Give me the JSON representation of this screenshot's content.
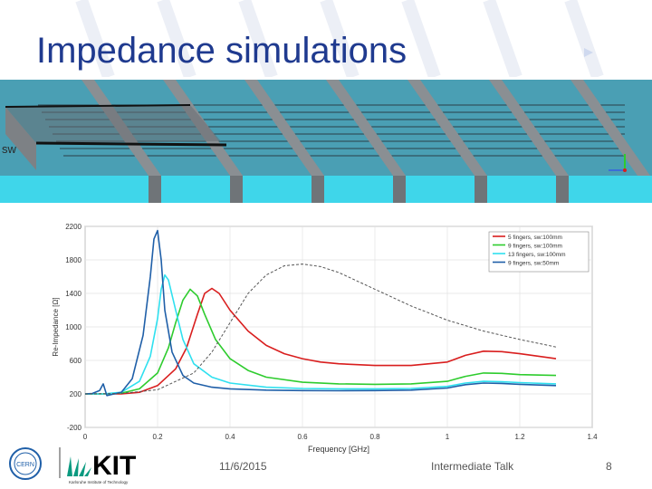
{
  "slide": {
    "title": "Impedance simulations",
    "sim_label": "sw",
    "footer": {
      "date": "11/6/2015",
      "talk": "Intermediate Talk",
      "page": "8"
    },
    "logos": {
      "cern": "CERN",
      "kit": "KIT",
      "kit_tagline": "Karlsruhe Institute of Technology"
    }
  },
  "colors": {
    "title": "#1f3a8f",
    "sim_cyan": "#3fd6ea",
    "series": [
      "#d91e1e",
      "#2ecc2e",
      "#2fe0ef",
      "#1f5fa8"
    ],
    "reference": "#555555"
  },
  "chart_data": {
    "type": "line",
    "title": "",
    "xlabel": "Frequency [GHz]",
    "ylabel": "Re-Impedance [Ω]",
    "xlim": [
      0,
      1.4
    ],
    "ylim": [
      -200,
      2200
    ],
    "xticks": [
      0,
      0.2,
      0.4,
      0.6,
      0.8,
      1,
      1.2,
      1.4
    ],
    "xtick_labels": [
      "0",
      "0.2",
      "0.4",
      "0.6",
      "0.8",
      "1",
      "1.2",
      "1.4"
    ],
    "yticks": [
      -200,
      200,
      600,
      1000,
      1400,
      1800,
      2200
    ],
    "ytick_labels": [
      "-200",
      "200",
      "600",
      "1000",
      "1400",
      "1800",
      "2200"
    ],
    "grid": true,
    "legend": "top-right",
    "series": [
      {
        "name": "5 fingers, sw:100mm",
        "color": "#d91e1e",
        "x": [
          0,
          0.05,
          0.1,
          0.15,
          0.2,
          0.25,
          0.28,
          0.31,
          0.33,
          0.35,
          0.37,
          0.4,
          0.45,
          0.5,
          0.55,
          0.6,
          0.65,
          0.7,
          0.8,
          0.9,
          1.0,
          1.05,
          1.1,
          1.15,
          1.2,
          1.3
        ],
        "y": [
          200,
          200,
          200,
          220,
          300,
          500,
          750,
          1150,
          1400,
          1460,
          1400,
          1200,
          950,
          780,
          680,
          620,
          580,
          560,
          540,
          540,
          580,
          660,
          710,
          705,
          680,
          620
        ]
      },
      {
        "name": "9 fingers, sw:100mm",
        "color": "#2ecc2e",
        "x": [
          0,
          0.05,
          0.1,
          0.15,
          0.2,
          0.23,
          0.25,
          0.27,
          0.29,
          0.31,
          0.33,
          0.36,
          0.4,
          0.45,
          0.5,
          0.6,
          0.7,
          0.8,
          0.9,
          1.0,
          1.05,
          1.1,
          1.15,
          1.2,
          1.3
        ],
        "y": [
          200,
          200,
          210,
          260,
          450,
          750,
          1050,
          1320,
          1450,
          1370,
          1150,
          850,
          620,
          480,
          400,
          340,
          320,
          315,
          320,
          350,
          410,
          450,
          445,
          430,
          420
        ]
      },
      {
        "name": "13 fingers, sw:100mm",
        "color": "#2fe0ef",
        "x": [
          0,
          0.05,
          0.1,
          0.15,
          0.18,
          0.2,
          0.21,
          0.22,
          0.23,
          0.25,
          0.27,
          0.3,
          0.35,
          0.4,
          0.5,
          0.6,
          0.7,
          0.8,
          0.9,
          1.0,
          1.05,
          1.1,
          1.15,
          1.2,
          1.3
        ],
        "y": [
          200,
          200,
          220,
          350,
          650,
          1100,
          1450,
          1620,
          1560,
          1200,
          850,
          560,
          400,
          330,
          280,
          265,
          260,
          260,
          265,
          290,
          330,
          350,
          345,
          335,
          320
        ]
      },
      {
        "name": "9 fingers, sw:50mm",
        "color": "#1f5fa8",
        "x": [
          0,
          0.02,
          0.04,
          0.05,
          0.06,
          0.08,
          0.1,
          0.13,
          0.16,
          0.18,
          0.19,
          0.2,
          0.21,
          0.22,
          0.24,
          0.27,
          0.3,
          0.35,
          0.4,
          0.5,
          0.6,
          0.7,
          0.8,
          0.9,
          1.0,
          1.05,
          1.1,
          1.15,
          1.2,
          1.3
        ],
        "y": [
          200,
          205,
          240,
          320,
          180,
          200,
          220,
          380,
          900,
          1600,
          2050,
          2150,
          1800,
          1200,
          700,
          420,
          330,
          280,
          260,
          245,
          240,
          238,
          240,
          245,
          270,
          310,
          330,
          325,
          315,
          300
        ]
      },
      {
        "name": "",
        "color": "#555555",
        "dashed": true,
        "x": [
          0,
          0.1,
          0.2,
          0.3,
          0.35,
          0.4,
          0.45,
          0.5,
          0.55,
          0.6,
          0.65,
          0.7,
          0.8,
          0.9,
          1.0,
          1.1,
          1.2,
          1.3
        ],
        "y": [
          200,
          205,
          250,
          450,
          700,
          1050,
          1400,
          1620,
          1730,
          1750,
          1720,
          1650,
          1450,
          1250,
          1080,
          950,
          850,
          760
        ]
      }
    ]
  }
}
